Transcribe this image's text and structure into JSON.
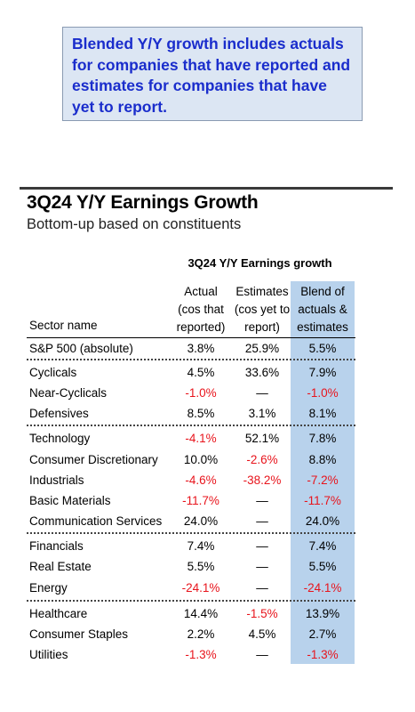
{
  "callout": {
    "lines": [
      "Blended Y/Y growth includes actuals",
      "for companies that have reported and",
      "estimates for companies that have",
      "yet to report."
    ]
  },
  "title": "3Q24 Y/Y Earnings Growth",
  "subtitle": "Bottom-up based on constituents",
  "table": {
    "group_header": "3Q24 Y/Y Earnings growth",
    "columns": {
      "sector": "Sector name",
      "actual": [
        "Actual",
        "(cos that",
        "reported)"
      ],
      "estimates": [
        "Estimates",
        "(cos yet to",
        "report)"
      ],
      "blend": [
        "Blend of",
        "actuals &",
        "estimates"
      ]
    },
    "rows": [
      {
        "sector": "S&P 500 (absolute)",
        "actual": "3.8%",
        "estimates": "25.9%",
        "blend": "5.5%"
      },
      {
        "sector": "Cyclicals",
        "actual": "4.5%",
        "estimates": "33.6%",
        "blend": "7.9%"
      },
      {
        "sector": "Near-Cyclicals",
        "actual": "-1.0%",
        "estimates": "—",
        "blend": "-1.0%"
      },
      {
        "sector": "Defensives",
        "actual": "8.5%",
        "estimates": "3.1%",
        "blend": "8.1%"
      },
      {
        "sector": "Technology",
        "actual": "-4.1%",
        "estimates": "52.1%",
        "blend": "7.8%"
      },
      {
        "sector": "Consumer Discretionary",
        "actual": "10.0%",
        "estimates": "-2.6%",
        "blend": "8.8%"
      },
      {
        "sector": "Industrials",
        "actual": "-4.6%",
        "estimates": "-38.2%",
        "blend": "-7.2%"
      },
      {
        "sector": "Basic Materials",
        "actual": "-11.7%",
        "estimates": "—",
        "blend": "-11.7%"
      },
      {
        "sector": "Communication Services",
        "actual": "24.0%",
        "estimates": "—",
        "blend": "24.0%"
      },
      {
        "sector": "Financials",
        "actual": "7.4%",
        "estimates": "—",
        "blend": "7.4%"
      },
      {
        "sector": "Real Estate",
        "actual": "5.5%",
        "estimates": "—",
        "blend": "5.5%"
      },
      {
        "sector": "Energy",
        "actual": "-24.1%",
        "estimates": "—",
        "blend": "-24.1%"
      },
      {
        "sector": "Healthcare",
        "actual": "14.4%",
        "estimates": "-1.5%",
        "blend": "13.9%"
      },
      {
        "sector": "Consumer Staples",
        "actual": "2.2%",
        "estimates": "4.5%",
        "blend": "2.7%"
      },
      {
        "sector": "Utilities",
        "actual": "-1.3%",
        "estimates": "—",
        "blend": "-1.3%"
      }
    ]
  },
  "colors": {
    "callout_text": "#1a2dcc",
    "callout_bg": "#dce6f3",
    "blend_highlight": "#b8d2ec",
    "negative": "#e8141c"
  }
}
